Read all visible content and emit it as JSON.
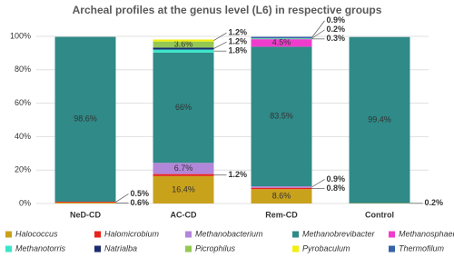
{
  "chart_data": {
    "type": "stacked_bar",
    "title": "Archeal profiles at the genus level (L6) in respective groups",
    "categories": [
      "NeD-CD",
      "AC-CD",
      "Rem-CD",
      "Control"
    ],
    "ylim": [
      0,
      100
    ],
    "yticks": [
      {
        "value": 0,
        "label": "0%"
      },
      {
        "value": 20,
        "label": "20%"
      },
      {
        "value": 40,
        "label": "40%"
      },
      {
        "value": 60,
        "label": "60%"
      },
      {
        "value": 80,
        "label": "80%"
      },
      {
        "value": 100,
        "label": "100%"
      }
    ],
    "grid": true,
    "series": [
      {
        "name": "Halococcus",
        "color": "#c9a21c",
        "values": [
          0.6,
          16.4,
          8.6,
          0.2
        ],
        "value_labels": [
          "0.6%",
          "16.4%",
          "8.6%",
          "0.2%"
        ]
      },
      {
        "name": "Halomicrobium",
        "color": "#e8231c",
        "values": [
          0.5,
          1.2,
          0.8,
          0
        ],
        "value_labels": [
          "0.5%",
          "1.2%",
          "0.8%",
          null
        ]
      },
      {
        "name": "Methanobacterium",
        "color": "#b286d9",
        "values": [
          0,
          6.7,
          0.9,
          0
        ],
        "value_labels": [
          null,
          "6.7%",
          "0.9%",
          null
        ]
      },
      {
        "name": "Methanobrevibacter",
        "color": "#2f8a88",
        "values": [
          98.6,
          66,
          83.5,
          99.4
        ],
        "value_labels": [
          "98.6%",
          "66%",
          "83.5%",
          "99.4%"
        ]
      },
      {
        "name": "Methanosphaera",
        "color": "#f03ccc",
        "values": [
          0,
          0,
          4.5,
          0
        ],
        "value_labels": [
          null,
          null,
          "4.5%",
          null
        ]
      },
      {
        "name": "Methanotorris",
        "color": "#3ae6c8",
        "values": [
          0,
          1.8,
          0.3,
          0
        ],
        "value_labels": [
          null,
          "1.8%",
          "0.3%",
          null
        ]
      },
      {
        "name": "Natrialba",
        "color": "#1c2b6e",
        "values": [
          0,
          1.2,
          0,
          0
        ],
        "value_labels": [
          null,
          "1.2%",
          null,
          null
        ]
      },
      {
        "name": "Picrophilus",
        "color": "#94c852",
        "values": [
          0,
          3.6,
          0.2,
          0
        ],
        "value_labels": [
          null,
          "3.6%",
          "0.2%",
          null
        ]
      },
      {
        "name": "Pyrobaculum",
        "color": "#f2ee10",
        "values": [
          0,
          1.2,
          0,
          0
        ],
        "value_labels": [
          null,
          "1.2%",
          null,
          null
        ]
      },
      {
        "name": "Thermofilum",
        "color": "#3563aa",
        "values": [
          0,
          0,
          0.9,
          0
        ],
        "value_labels": [
          null,
          null,
          "0.9%",
          null
        ]
      }
    ]
  }
}
